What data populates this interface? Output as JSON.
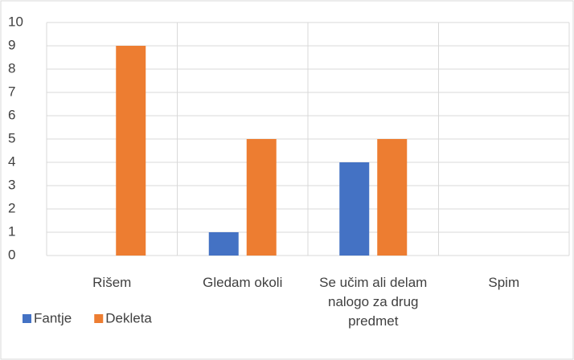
{
  "chart_data": {
    "type": "bar",
    "categories": [
      "Rišem",
      "Gledam okoli",
      "Se učim ali delam nalogo za drug predmet",
      "Spim"
    ],
    "series": [
      {
        "name": "Fantje",
        "color": "#4472c4",
        "values": [
          0,
          1,
          4,
          0
        ]
      },
      {
        "name": "Dekleta",
        "color": "#ed7d31",
        "values": [
          9,
          5,
          5,
          0
        ]
      }
    ],
    "ylim": [
      0,
      10
    ],
    "yticks": [
      0,
      1,
      2,
      3,
      4,
      5,
      6,
      7,
      8,
      9,
      10
    ],
    "grid": true,
    "legend": "bottom-left"
  }
}
